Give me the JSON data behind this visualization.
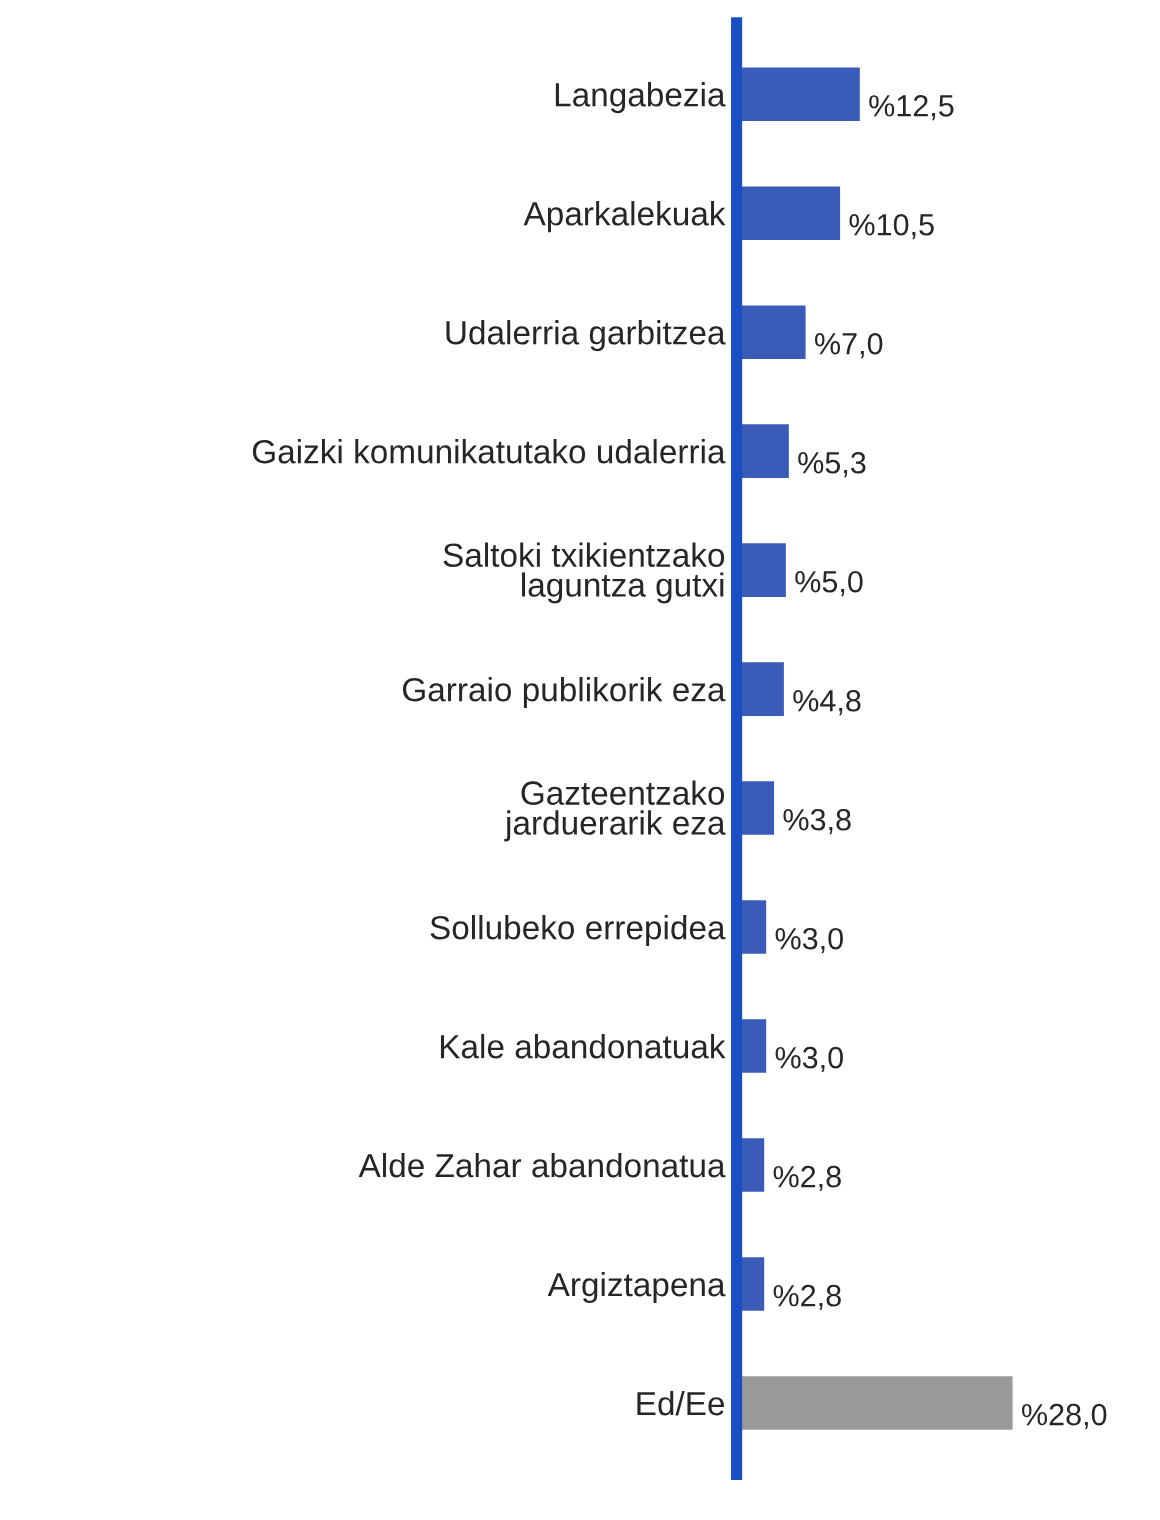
{
  "chart_data": {
    "type": "bar",
    "orientation": "horizontal",
    "categories": [
      "Langabezia",
      "Aparkalekuak",
      "Udalerria garbitzea",
      "Gaizki komunikatutako udalerria",
      "Saltoki txikientzako\nlaguntza gutxi",
      "Garraio publikorik eza",
      "Gazteentzako\njarduerarik eza",
      "Sollubeko errepidea",
      "Kale abandonatuak",
      "Alde Zahar abandonatua",
      "Argiztapena",
      "Ed/Ee"
    ],
    "values": [
      12.5,
      10.5,
      7.0,
      5.3,
      5.0,
      4.8,
      3.8,
      3.0,
      3.0,
      2.8,
      2.8,
      28.0
    ],
    "value_labels": [
      "%12,5",
      "%10,5",
      "%7,0",
      "%5,3",
      "%5,0",
      "%4,8",
      "%3,8",
      "%3,0",
      "%3,0",
      "%2,8",
      "%2,8",
      "%28,0"
    ],
    "colors": [
      "#3a5cb8",
      "#3a5cb8",
      "#3a5cb8",
      "#3a5cb8",
      "#3a5cb8",
      "#3a5cb8",
      "#3a5cb8",
      "#3a5cb8",
      "#3a5cb8",
      "#3a5cb8",
      "#3a5cb8",
      "#9a9a9a"
    ],
    "grid": false,
    "legend": false,
    "tick_labels": "y"
  }
}
